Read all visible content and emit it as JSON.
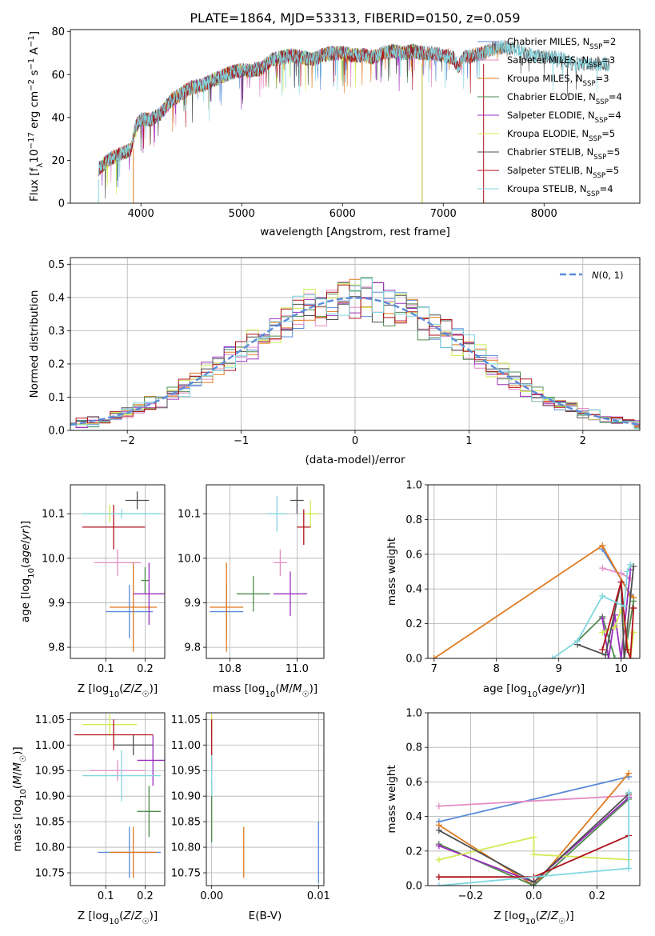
{
  "colors": {
    "Chabrier MILES": "#5b8bd9",
    "Salpeter MILES": "#e48cc4",
    "Kroupa MILES": "#e07b1f",
    "Chabrier ELODIE": "#4f8a4f",
    "Salpeter ELODIE": "#9b2fbf",
    "Kroupa ELODIE": "#d4ea55",
    "Chabrier STELIB": "#505050",
    "Salpeter STELIB": "#b1121c",
    "Kroupa STELIB": "#82d6e0",
    "gauss": "#5b8bd9",
    "grid": "#b0b0b0"
  },
  "chart_data": [
    {
      "id": "spectrum",
      "type": "line",
      "title": "PLATE=1864, MJD=53313, FIBERID=0150, z=0.059",
      "xlabel": "wavelength [Angstrom, rest frame]",
      "ylabel": "Flux [f_λ10^-17 erg cm^-2 s^-1 A^-1]",
      "xlim": [
        3300,
        8950
      ],
      "ylim": [
        0,
        81
      ],
      "xticks": [
        4000,
        5000,
        6000,
        7000,
        8000
      ],
      "yticks": [
        0,
        20,
        40,
        60,
        80
      ],
      "grid": false,
      "legend_position": "top-right",
      "envelope": {
        "x": [
          3580,
          3700,
          3800,
          3900,
          3950,
          4000,
          4100,
          4200,
          4300,
          4400,
          4500,
          4600,
          4700,
          4800,
          4900,
          5000,
          5100,
          5200,
          5300,
          5400,
          5500,
          5600,
          5700,
          5800,
          5900,
          6000,
          6100,
          6200,
          6300,
          6400,
          6500,
          6600,
          6700,
          6800,
          6900,
          7000,
          7100,
          7150,
          7200,
          7300,
          7400,
          7500,
          7600,
          7700,
          7800,
          7900,
          8000,
          8100,
          8200,
          8300
        ],
        "y": [
          16,
          21,
          23,
          25,
          36,
          39,
          39,
          42,
          48,
          51,
          54,
          55,
          57,
          59,
          61,
          62,
          62,
          63,
          67,
          68,
          69,
          68,
          67,
          69,
          70,
          70,
          69,
          69,
          68,
          70,
          71,
          70,
          71,
          70,
          70,
          69,
          68,
          63,
          68,
          69,
          70,
          72,
          73,
          72,
          70,
          69,
          68,
          68,
          67,
          65
        ]
      },
      "series_labels": [
        {
          "model": "Chabrier MILES",
          "label": "Chabrier MILES, N_SSP=2",
          "x_end": 7640
        },
        {
          "model": "Salpeter MILES",
          "label": "Salpeter MILES, N_SSP=3",
          "x_end": 7640
        },
        {
          "model": "Kroupa MILES",
          "label": "Kroupa MILES, N_SSP=3",
          "x_end": 7640
        },
        {
          "model": "Chabrier ELODIE",
          "label": "Chabrier ELODIE, N_SSP=4",
          "x_end": 6790
        },
        {
          "model": "Salpeter ELODIE",
          "label": "Salpeter ELODIE, N_SSP=4",
          "x_end": 6790
        },
        {
          "model": "Kroupa ELODIE",
          "label": "Kroupa ELODIE, N_SSP=5",
          "x_end": 6790
        },
        {
          "model": "Chabrier STELIB",
          "label": "Chabrier STELIB, N_SSP=5",
          "x_end": 8650
        },
        {
          "model": "Salpeter STELIB",
          "label": "Salpeter STELIB, N_SSP=5",
          "x_end": 7400
        },
        {
          "model": "Kroupa STELIB",
          "label": "Kroupa STELIB, N_SSP=4",
          "x_end": 8650
        }
      ]
    },
    {
      "id": "residuals",
      "type": "line",
      "xlabel": "(data-model)/error",
      "ylabel": "Normed distribution",
      "xlim": [
        -2.5,
        2.5
      ],
      "ylim": [
        0,
        0.52
      ],
      "xticks": [
        -2,
        -1,
        0,
        1,
        2
      ],
      "yticks": [
        0.0,
        0.1,
        0.2,
        0.3,
        0.4,
        0.5
      ],
      "grid": true,
      "legend_position": "top-right",
      "legend_label": "N(0,1)",
      "bin_width": 0.1,
      "histogram_peak": 0.45
    },
    {
      "id": "age_vs_Z",
      "type": "scatter",
      "xlabel": "Z [log10(Z/Z☉)]",
      "ylabel": "age  [log10(age/yr)]",
      "xlim": [
        0.01,
        0.25
      ],
      "ylim": [
        9.775,
        10.165
      ],
      "xticks": [
        0.1,
        0.2
      ],
      "yticks": [
        9.8,
        9.9,
        10.0,
        10.1
      ],
      "grid": true,
      "points": [
        {
          "model": "Chabrier MILES",
          "x": 0.16,
          "y": 9.88,
          "xerr": 0.06,
          "yerr": 0.06
        },
        {
          "model": "Salpeter MILES",
          "x": 0.13,
          "y": 9.99,
          "xerr": 0.06,
          "yerr": 0.03
        },
        {
          "model": "Kroupa MILES",
          "x": 0.17,
          "y": 9.89,
          "xerr": 0.06,
          "yerr": 0.1
        },
        {
          "model": "Chabrier ELODIE",
          "x": 0.2,
          "y": 9.95,
          "xerr": 0.01,
          "yerr": 0.03
        },
        {
          "model": "Salpeter ELODIE",
          "x": 0.21,
          "y": 9.92,
          "xerr": 0.04,
          "yerr": 0.07
        },
        {
          "model": "Kroupa ELODIE",
          "x": 0.11,
          "y": 10.1,
          "xerr": 0.05,
          "yerr": 0.02
        },
        {
          "model": "Chabrier STELIB",
          "x": 0.18,
          "y": 10.13,
          "xerr": 0.03,
          "yerr": 0.02
        },
        {
          "model": "Salpeter STELIB",
          "x": 0.12,
          "y": 10.07,
          "xerr": 0.08,
          "yerr": 0.05
        },
        {
          "model": "Kroupa STELIB",
          "x": 0.14,
          "y": 10.1,
          "xerr": 0.1,
          "yerr": 0.01
        }
      ]
    },
    {
      "id": "age_vs_mass",
      "type": "scatter",
      "xlabel": "mass [log10(M/M☉)]",
      "ylabel": "",
      "xlim": [
        10.73,
        11.08
      ],
      "ylim": [
        9.775,
        10.165
      ],
      "xticks": [
        10.8,
        11.0
      ],
      "yticks": [
        9.8,
        9.9,
        10.0,
        10.1
      ],
      "grid": true,
      "points": [
        {
          "model": "Chabrier MILES",
          "x": 10.79,
          "y": 9.88,
          "xerr": 0.05,
          "yerr": 0.06
        },
        {
          "model": "Salpeter MILES",
          "x": 10.95,
          "y": 9.99,
          "xerr": 0.02,
          "yerr": 0.03
        },
        {
          "model": "Kroupa MILES",
          "x": 10.79,
          "y": 9.89,
          "xerr": 0.05,
          "yerr": 0.1
        },
        {
          "model": "Chabrier ELODIE",
          "x": 10.87,
          "y": 9.92,
          "xerr": 0.05,
          "yerr": 0.04
        },
        {
          "model": "Salpeter ELODIE",
          "x": 10.98,
          "y": 9.92,
          "xerr": 0.05,
          "yerr": 0.05
        },
        {
          "model": "Kroupa ELODIE",
          "x": 11.04,
          "y": 10.1,
          "xerr": 0.02,
          "yerr": 0.03
        },
        {
          "model": "Chabrier STELIB",
          "x": 11.0,
          "y": 10.13,
          "xerr": 0.02,
          "yerr": 0.03
        },
        {
          "model": "Salpeter STELIB",
          "x": 11.02,
          "y": 10.07,
          "xerr": 0.02,
          "yerr": 0.04
        },
        {
          "model": "Kroupa STELIB",
          "x": 10.94,
          "y": 10.1,
          "xerr": 0.03,
          "yerr": 0.04
        }
      ]
    },
    {
      "id": "weight_vs_age",
      "type": "line",
      "xlabel": "age  [log10(age/yr)]",
      "ylabel": "mass weight",
      "xlim": [
        6.9,
        10.3
      ],
      "ylim": [
        0,
        1.0
      ],
      "xticks": [
        7,
        8,
        9,
        10
      ],
      "yticks": [
        0.0,
        0.2,
        0.4,
        0.6,
        0.8,
        1.0
      ],
      "grid": true,
      "series": [
        {
          "model": "Chabrier MILES",
          "x": [
            9.7,
            10.15
          ],
          "y": [
            0.63,
            0.37
          ]
        },
        {
          "model": "Salpeter MILES",
          "x": [
            9.7,
            10.0,
            10.15
          ],
          "y": [
            0.52,
            0.49,
            0.46
          ]
        },
        {
          "model": "Kroupa MILES",
          "x": [
            7.0,
            9.7,
            10.15,
            10.2
          ],
          "y": [
            0.0,
            0.65,
            0.36,
            0.35
          ]
        },
        {
          "model": "Chabrier ELODIE",
          "x": [
            9.3,
            9.7,
            9.9,
            10.05,
            10.2
          ],
          "y": [
            0.1,
            0.24,
            0.0,
            0.0,
            0.33
          ]
        },
        {
          "model": "Salpeter ELODIE",
          "x": [
            9.7,
            9.8,
            9.9,
            10.0,
            10.15
          ],
          "y": [
            0.23,
            0.0,
            0.25,
            0.0,
            0.51
          ]
        },
        {
          "model": "Kroupa ELODIE",
          "x": [
            9.7,
            9.9,
            10.0,
            10.15,
            10.2
          ],
          "y": [
            0.15,
            0.18,
            0.28,
            0.0,
            0.15
          ]
        },
        {
          "model": "Chabrier STELIB",
          "x": [
            9.3,
            9.75,
            10.0,
            10.05,
            10.2
          ],
          "y": [
            0.08,
            0.02,
            0.44,
            0.0,
            0.53
          ]
        },
        {
          "model": "Salpeter STELIB",
          "x": [
            9.7,
            10.0,
            10.1,
            10.15,
            10.2
          ],
          "y": [
            0.05,
            0.44,
            0.05,
            0.0,
            0.29
          ]
        },
        {
          "model": "Kroupa STELIB",
          "x": [
            8.9,
            9.3,
            9.7,
            10.05,
            10.1,
            10.15
          ],
          "y": [
            0.0,
            0.1,
            0.36,
            0.3,
            0.5,
            0.54
          ]
        }
      ]
    },
    {
      "id": "mass_vs_Z",
      "type": "scatter",
      "xlabel": "Z [log10(Z/Z☉)]",
      "ylabel": "mass [log10(M/M☉)]",
      "xlim": [
        0.01,
        0.25
      ],
      "ylim": [
        10.725,
        11.063
      ],
      "xticks": [
        0.1,
        0.2
      ],
      "yticks": [
        10.75,
        10.8,
        10.85,
        10.9,
        10.95,
        11.0,
        11.05
      ],
      "grid": true,
      "points": [
        {
          "model": "Chabrier MILES",
          "x": 0.16,
          "y": 10.79,
          "xerr": 0.08,
          "yerr": 0.05
        },
        {
          "model": "Salpeter MILES",
          "x": 0.13,
          "y": 10.95,
          "xerr": 0.07,
          "yerr": 0.02
        },
        {
          "model": "Kroupa MILES",
          "x": 0.17,
          "y": 10.79,
          "xerr": 0.06,
          "yerr": 0.05
        },
        {
          "model": "Chabrier ELODIE",
          "x": 0.21,
          "y": 10.87,
          "xerr": 0.03,
          "yerr": 0.05
        },
        {
          "model": "Salpeter ELODIE",
          "x": 0.22,
          "y": 10.97,
          "xerr": 0.04,
          "yerr": 0.05
        },
        {
          "model": "Kroupa ELODIE",
          "x": 0.11,
          "y": 11.04,
          "xerr": 0.07,
          "yerr": 0.02
        },
        {
          "model": "Chabrier STELIB",
          "x": 0.17,
          "y": 11.0,
          "xerr": 0.05,
          "yerr": 0.02
        },
        {
          "model": "Salpeter STELIB",
          "x": 0.12,
          "y": 11.02,
          "xerr": 0.1,
          "yerr": 0.03
        },
        {
          "model": "Kroupa STELIB",
          "x": 0.14,
          "y": 10.94,
          "xerr": 0.1,
          "yerr": 0.05
        }
      ]
    },
    {
      "id": "mass_vs_EBV",
      "type": "scatter",
      "xlabel": "E(B-V)",
      "ylabel": "",
      "xlim": [
        -0.0005,
        0.0105
      ],
      "ylim": [
        10.725,
        11.063
      ],
      "xticks": [
        0.0,
        0.01
      ],
      "yticks": [
        10.75,
        10.8,
        10.85,
        10.9,
        10.95,
        11.0,
        11.05
      ],
      "grid": true,
      "points": [
        {
          "model": "Chabrier MILES",
          "x": 0.01,
          "y": 10.79,
          "xerr": 0,
          "yerr": 0.06
        },
        {
          "model": "Kroupa MILES",
          "x": 0.003,
          "y": 10.79,
          "xerr": 0,
          "yerr": 0.05
        },
        {
          "model": "Chabrier ELODIE",
          "x": 0.0,
          "y": 10.87,
          "xerr": 0,
          "yerr": 0.06
        },
        {
          "model": "Kroupa ELODIE",
          "x": 0.0,
          "y": 11.04,
          "xerr": 0,
          "yerr": 0.02
        },
        {
          "model": "Salpeter STELIB",
          "x": 0.0,
          "y": 11.0,
          "xerr": 0,
          "yerr": 0.05
        },
        {
          "model": "Kroupa STELIB",
          "x": 0.0,
          "y": 10.94,
          "xerr": 0,
          "yerr": 0.04
        }
      ]
    },
    {
      "id": "weight_vs_Z",
      "type": "line",
      "xlabel": "Z [log10(Z/Z☉)]",
      "ylabel": "mass weight",
      "xlim": [
        -0.335,
        0.335
      ],
      "ylim": [
        0,
        1.0
      ],
      "xticks": [
        -0.2,
        0.0,
        0.2
      ],
      "yticks": [
        0.0,
        0.2,
        0.4,
        0.6,
        0.8,
        1.0
      ],
      "grid": true,
      "series": [
        {
          "model": "Chabrier MILES",
          "x": [
            -0.3,
            0.3
          ],
          "y": [
            0.37,
            0.63
          ]
        },
        {
          "model": "Salpeter MILES",
          "x": [
            -0.3,
            0.3
          ],
          "y": [
            0.46,
            0.52
          ]
        },
        {
          "model": "Kroupa MILES",
          "x": [
            -0.3,
            0.0,
            0.3
          ],
          "y": [
            0.35,
            0.0,
            0.65
          ]
        },
        {
          "model": "Chabrier ELODIE",
          "x": [
            -0.3,
            0.0,
            0.3
          ],
          "y": [
            0.24,
            0.0,
            0.5
          ]
        },
        {
          "model": "Salpeter ELODIE",
          "x": [
            -0.3,
            0.0,
            0.3
          ],
          "y": [
            0.23,
            0.02,
            0.51
          ]
        },
        {
          "model": "Kroupa ELODIE",
          "x": [
            -0.3,
            0.0,
            0.0,
            0.3
          ],
          "y": [
            0.15,
            0.28,
            0.18,
            0.15
          ]
        },
        {
          "model": "Chabrier STELIB",
          "x": [
            -0.3,
            0.0,
            0.3
          ],
          "y": [
            0.32,
            0.02,
            0.53
          ]
        },
        {
          "model": "Salpeter STELIB",
          "x": [
            -0.3,
            0.0,
            0.3
          ],
          "y": [
            0.05,
            0.05,
            0.29
          ]
        },
        {
          "model": "Kroupa STELIB",
          "x": [
            -0.3,
            0.3,
            0.3
          ],
          "y": [
            0.0,
            0.1,
            0.54
          ]
        }
      ]
    }
  ]
}
